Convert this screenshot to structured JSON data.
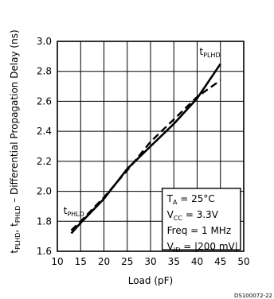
{
  "chart_data": {
    "type": "line",
    "xlabel": "Load (pF)",
    "ylabel": {
      "t1": "t",
      "t1_sub": "PLHD",
      "sep": ", ",
      "t2": "t",
      "t2_sub": "PHLD",
      "rest": " – Differential Propagation Delay (ns)"
    },
    "xlim": [
      10,
      50
    ],
    "ylim": [
      1.6,
      3.0
    ],
    "x_ticks": [
      "10",
      "15",
      "20",
      "25",
      "30",
      "35",
      "40",
      "45",
      "50"
    ],
    "y_ticks": [
      "1.6",
      "1.8",
      "2.0",
      "2.2",
      "2.4",
      "2.6",
      "2.8",
      "3.0"
    ],
    "grid": true,
    "series": [
      {
        "name": "tPLHD",
        "name_main": "t",
        "name_sub": "PLHD",
        "style": "solid",
        "x": [
          13,
          15,
          20,
          25,
          30,
          35,
          40,
          45
        ],
        "y": [
          1.72,
          1.79,
          1.95,
          2.15,
          2.3,
          2.45,
          2.62,
          2.85
        ]
      },
      {
        "name": "tPHLD",
        "name_main": "t",
        "name_sub": "PHLD",
        "style": "dashed",
        "x": [
          13,
          15,
          20,
          25,
          30,
          35,
          40,
          45
        ],
        "y": [
          1.74,
          1.8,
          1.96,
          2.14,
          2.33,
          2.48,
          2.63,
          2.74
        ]
      }
    ],
    "conditions": [
      {
        "main": "T",
        "sub": "A",
        "rest": " = 25°C"
      },
      {
        "main": "V",
        "sub": "CC",
        "rest": " = 3.3V"
      },
      {
        "main": "Freq = 1 MHz",
        "sub": "",
        "rest": ""
      },
      {
        "main": "V",
        "sub": "ID",
        "rest": " = |200 mV|"
      }
    ],
    "footer": "DS100072-22"
  }
}
